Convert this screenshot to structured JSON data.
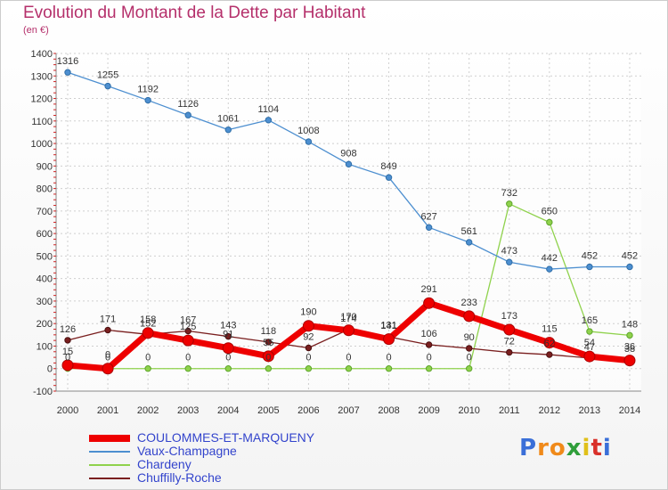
{
  "title": "Evolution du Montant de la Dette par Habitant",
  "subtitle": "(en €)",
  "logo": {
    "letters": [
      "P",
      "r",
      "o",
      "x",
      "i",
      "t",
      "i"
    ],
    "colors": [
      "#3a6fd8",
      "#f08a1a",
      "#f08a1a",
      "#2f9e3a",
      "#e0c01a",
      "#d9302a",
      "#3a6fd8"
    ]
  },
  "chart_data": {
    "type": "line",
    "title": "Evolution du Montant de la Dette par Habitant",
    "ylabel": "(en €)",
    "xlabel": "",
    "ylim": [
      -100,
      1400
    ],
    "yticks": [
      -100,
      0,
      100,
      200,
      300,
      400,
      500,
      600,
      700,
      800,
      900,
      1000,
      1100,
      1200,
      1300,
      1400
    ],
    "x": [
      "2000",
      "2001",
      "2002",
      "2003",
      "2004",
      "2005",
      "2006",
      "2007",
      "2008",
      "2009",
      "2010",
      "2011",
      "2012",
      "2013",
      "2014"
    ],
    "grid": true,
    "legend_position": "bottom-left",
    "series": [
      {
        "name": "COULOMMES-ET-MARQUENY",
        "color": "#ee0000",
        "values": [
          15,
          0,
          158,
          125,
          91,
          55,
          190,
          170,
          131,
          291,
          233,
          173,
          115,
          54,
          36
        ],
        "labels": [
          "15",
          "0",
          "158",
          "125",
          "91",
          "55",
          "190",
          "170",
          "131",
          "291",
          "233",
          "173",
          "115",
          "54",
          "36"
        ]
      },
      {
        "name": "Vaux-Champagne",
        "color": "#4d8fd0",
        "values": [
          1316,
          1255,
          1192,
          1126,
          1061,
          1104,
          1008,
          908,
          849,
          627,
          561,
          473,
          442,
          452,
          452
        ],
        "labels": [
          "1316",
          "1255",
          "1192",
          "1126",
          "1061",
          "1104",
          "1008",
          "908",
          "849",
          "627",
          "561",
          "473",
          "442",
          "452",
          "452"
        ]
      },
      {
        "name": "Chardeny",
        "color": "#8fd24c",
        "values": [
          0,
          0,
          0,
          0,
          0,
          0,
          0,
          0,
          0,
          0,
          0,
          732,
          650,
          165,
          148
        ],
        "labels": [
          "0",
          "0",
          "0",
          "0",
          "0",
          "0",
          "0",
          "0",
          "0",
          "0",
          "0",
          "732",
          "650",
          "165",
          "148"
        ]
      },
      {
        "name": "Chuffilly-Roche",
        "color": "#7a1f1f",
        "values": [
          126,
          171,
          152,
          167,
          143,
          118,
          92,
          174,
          141,
          106,
          90,
          72,
          62,
          47,
          38
        ],
        "labels": [
          "126",
          "171",
          "152",
          "167",
          "143",
          "118",
          "92",
          "174",
          "141",
          "106",
          "90",
          "72",
          "62",
          "47",
          "38"
        ]
      }
    ]
  }
}
